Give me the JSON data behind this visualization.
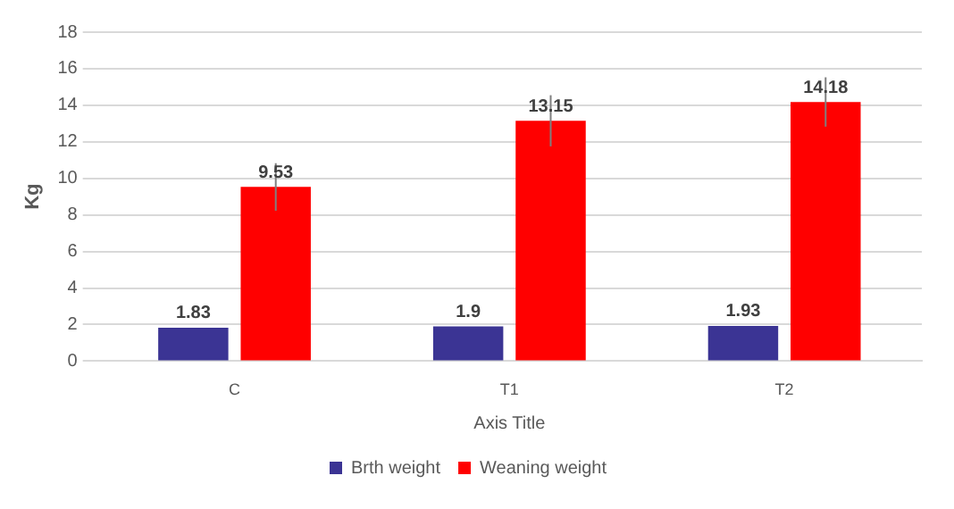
{
  "chart_data": {
    "type": "bar",
    "xlabel": "Axis Title",
    "ylabel": "Kg",
    "categories": [
      "C",
      "T1",
      "T2"
    ],
    "series": [
      {
        "name": "Brth weight",
        "color": "#3b3494",
        "values": [
          1.83,
          1.9,
          1.93
        ]
      },
      {
        "name": "Weaning weight",
        "color": "#ff0000",
        "values": [
          9.53,
          13.15,
          14.18
        ],
        "errors": [
          1.3,
          1.4,
          1.35
        ]
      }
    ],
    "ylim": [
      0,
      18
    ],
    "yticks": [
      0,
      2,
      4,
      6,
      8,
      10,
      12,
      14,
      16,
      18
    ],
    "grid": "y",
    "legend": "bottom",
    "data_labels": true
  }
}
